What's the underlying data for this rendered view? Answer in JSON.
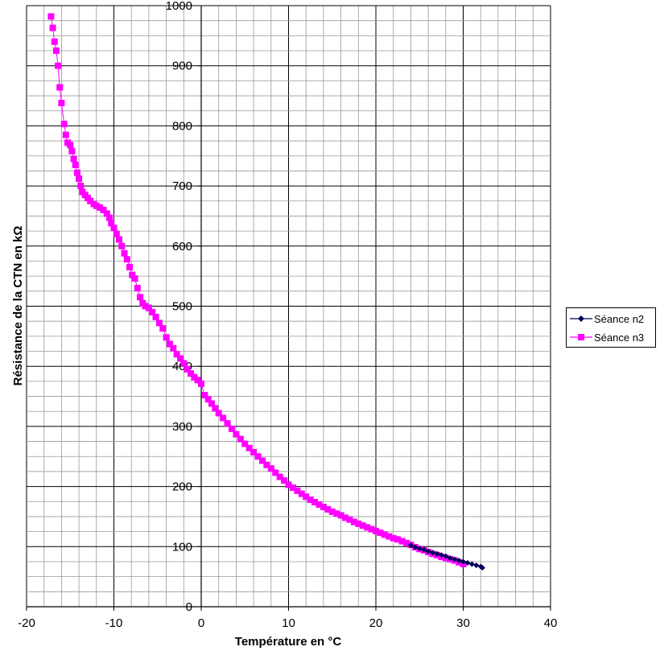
{
  "chart_data": {
    "type": "scatter",
    "xlabel": "Température en °C",
    "ylabel": "Résistance de la CTN en kΩ",
    "xlim": [
      -20,
      40
    ],
    "ylim": [
      0,
      1000
    ],
    "x_ticks": [
      "-20",
      "-10",
      "0",
      "10",
      "20",
      "30",
      "40"
    ],
    "y_ticks": [
      "0",
      "100",
      "200",
      "300",
      "400",
      "500",
      "600",
      "700",
      "800",
      "900",
      "1000"
    ],
    "grid": true,
    "legend_position": "right",
    "series": [
      {
        "name": "Séance n2",
        "color": "#00005c",
        "marker": "diamond",
        "points": [
          [
            24.0,
            102
          ],
          [
            24.5,
            99
          ],
          [
            25.0,
            97
          ],
          [
            25.5,
            95
          ],
          [
            26.0,
            92
          ],
          [
            26.5,
            90
          ],
          [
            27.0,
            88
          ],
          [
            27.5,
            86
          ],
          [
            28.0,
            84
          ],
          [
            28.5,
            81
          ],
          [
            29.0,
            79
          ],
          [
            29.5,
            77
          ],
          [
            30.0,
            75
          ],
          [
            30.5,
            73
          ],
          [
            31.0,
            71
          ],
          [
            31.5,
            69
          ],
          [
            32.0,
            67
          ],
          [
            32.2,
            65
          ]
        ]
      },
      {
        "name": "Séance n3",
        "color": "#ff00ff",
        "marker": "square",
        "points": [
          [
            -17.2,
            982
          ],
          [
            -17.0,
            963
          ],
          [
            -16.8,
            940
          ],
          [
            -16.6,
            925
          ],
          [
            -16.4,
            900
          ],
          [
            -16.2,
            864
          ],
          [
            -16.0,
            838
          ],
          [
            -15.7,
            803
          ],
          [
            -15.5,
            785
          ],
          [
            -15.3,
            772
          ],
          [
            -15.0,
            768
          ],
          [
            -14.8,
            758
          ],
          [
            -14.6,
            745
          ],
          [
            -14.4,
            735
          ],
          [
            -14.2,
            722
          ],
          [
            -14.0,
            712
          ],
          [
            -13.8,
            700
          ],
          [
            -13.6,
            690
          ],
          [
            -13.3,
            685
          ],
          [
            -13.0,
            680
          ],
          [
            -12.7,
            675
          ],
          [
            -12.3,
            670
          ],
          [
            -12.0,
            667
          ],
          [
            -11.6,
            664
          ],
          [
            -11.2,
            660
          ],
          [
            -10.8,
            654
          ],
          [
            -10.5,
            647
          ],
          [
            -10.3,
            638
          ],
          [
            -10.0,
            630
          ],
          [
            -9.7,
            620
          ],
          [
            -9.4,
            611
          ],
          [
            -9.1,
            600
          ],
          [
            -8.8,
            588
          ],
          [
            -8.5,
            578
          ],
          [
            -8.2,
            565
          ],
          [
            -7.9,
            552
          ],
          [
            -7.6,
            546
          ],
          [
            -7.3,
            530
          ],
          [
            -7.0,
            515
          ],
          [
            -6.7,
            505
          ],
          [
            -6.4,
            500
          ],
          [
            -6.0,
            497
          ],
          [
            -5.6,
            490
          ],
          [
            -5.2,
            482
          ],
          [
            -4.8,
            472
          ],
          [
            -4.4,
            463
          ],
          [
            -4.0,
            448
          ],
          [
            -3.6,
            437
          ],
          [
            -3.2,
            430
          ],
          [
            -2.8,
            420
          ],
          [
            -2.4,
            413
          ],
          [
            -2.0,
            405
          ],
          [
            -1.6,
            395
          ],
          [
            -1.2,
            388
          ],
          [
            -0.8,
            382
          ],
          [
            -0.4,
            377
          ],
          [
            0.0,
            371
          ],
          [
            0.4,
            352
          ],
          [
            0.8,
            345
          ],
          [
            1.2,
            338
          ],
          [
            1.6,
            330
          ],
          [
            2.0,
            322
          ],
          [
            2.5,
            314
          ],
          [
            3.0,
            305
          ],
          [
            3.5,
            296
          ],
          [
            4.0,
            287
          ],
          [
            4.5,
            279
          ],
          [
            5.0,
            271
          ],
          [
            5.5,
            264
          ],
          [
            6.0,
            257
          ],
          [
            6.5,
            250
          ],
          [
            7.0,
            243
          ],
          [
            7.5,
            236
          ],
          [
            8.0,
            230
          ],
          [
            8.5,
            223
          ],
          [
            9.0,
            216
          ],
          [
            9.5,
            210
          ],
          [
            10.0,
            203
          ],
          [
            10.5,
            198
          ],
          [
            11.0,
            193
          ],
          [
            11.5,
            188
          ],
          [
            12.0,
            183
          ],
          [
            12.5,
            178
          ],
          [
            13.0,
            174
          ],
          [
            13.5,
            170
          ],
          [
            14.0,
            166
          ],
          [
            14.5,
            162
          ],
          [
            15.0,
            158
          ],
          [
            15.5,
            155
          ],
          [
            16.0,
            152
          ],
          [
            16.5,
            148
          ],
          [
            17.0,
            145
          ],
          [
            17.5,
            141
          ],
          [
            18.0,
            138
          ],
          [
            18.5,
            135
          ],
          [
            19.0,
            132
          ],
          [
            19.5,
            129
          ],
          [
            20.0,
            126
          ],
          [
            20.5,
            123
          ],
          [
            21.0,
            120
          ],
          [
            21.5,
            117
          ],
          [
            22.0,
            114
          ],
          [
            22.5,
            112
          ],
          [
            23.0,
            109
          ],
          [
            23.5,
            106
          ],
          [
            24.0,
            103
          ],
          [
            24.5,
            99
          ],
          [
            25.0,
            96
          ],
          [
            25.5,
            94
          ],
          [
            26.0,
            91
          ],
          [
            26.5,
            88
          ],
          [
            27.0,
            86
          ],
          [
            27.5,
            83
          ],
          [
            28.0,
            81
          ],
          [
            28.5,
            79
          ],
          [
            29.0,
            77
          ],
          [
            29.5,
            74
          ],
          [
            30.0,
            71
          ]
        ]
      }
    ]
  }
}
